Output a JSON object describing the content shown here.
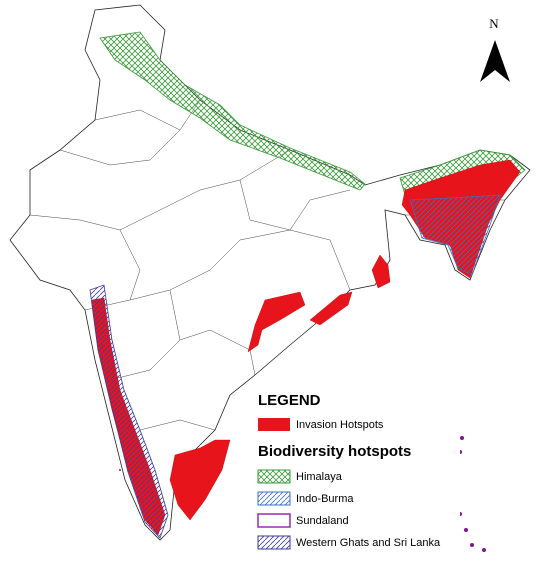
{
  "north_label": "N",
  "legend": {
    "title": "LEGEND",
    "invasion": {
      "label": "Invasion Hotspots"
    },
    "subtitle": "Biodiversity hotspots",
    "hotspots": [
      {
        "label": "Himalaya"
      },
      {
        "label": "Indo-Burma"
      },
      {
        "label": "Sundaland"
      },
      {
        "label": "Western Ghats and Sri Lanka"
      }
    ]
  }
}
